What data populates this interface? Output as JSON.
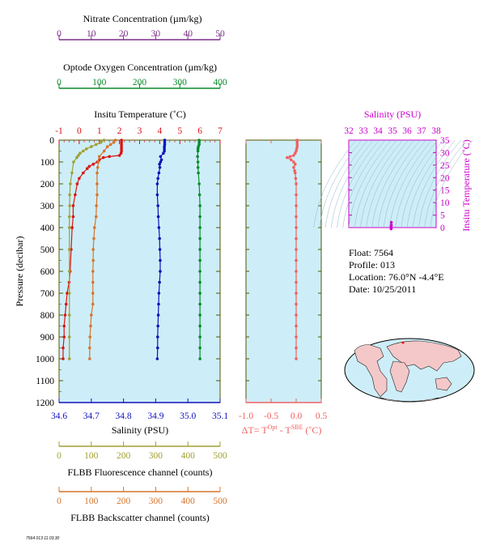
{
  "colors": {
    "nitrate": "#7a2f86",
    "oxygen": "#0a8a2a",
    "temperature": "#dd1111",
    "salinity": "#1111bb",
    "fluorescence": "#a0a030",
    "backscatter": "#d8742a",
    "delta": "#f06060",
    "ts_axis": "#cc00cc",
    "plot_bg": "#cdeef8",
    "frame": "#555500"
  },
  "info": {
    "float": "Float:  7564",
    "profile": "Profile:  013",
    "location": "Location:  76.0°N  -4.4°E",
    "date": "Date:  10/25/2011"
  },
  "footer_tag": "7564 013 11.03.30",
  "chart_data": [
    {
      "type": "scatter",
      "id": "main_profile",
      "ylabel": "Pressure (decibar)",
      "y_ticks": [
        0,
        100,
        200,
        300,
        400,
        500,
        600,
        700,
        800,
        900,
        1000,
        1100,
        1200
      ],
      "ylim": [
        1200,
        0
      ],
      "axes": {
        "nitrate": {
          "title": "Nitrate Concentration (µm/kg)",
          "ticks": [
            0,
            10,
            20,
            30,
            40,
            50
          ],
          "lim": [
            0,
            50
          ]
        },
        "oxygen": {
          "title": "Optode Oxygen Concentration (µm/kg)",
          "ticks": [
            0,
            100,
            200,
            300,
            400
          ],
          "lim": [
            0,
            400
          ]
        },
        "temperature": {
          "title": "Insitu Temperature (˚C)",
          "ticks": [
            -1,
            0,
            1,
            2,
            3,
            4,
            5,
            6,
            7
          ],
          "lim": [
            -1,
            7
          ]
        },
        "salinity": {
          "title": "Salinity (PSU)",
          "ticks": [
            34.6,
            34.7,
            34.8,
            34.9,
            35.0,
            35.1
          ],
          "lim": [
            34.6,
            35.1
          ]
        },
        "fluorescence": {
          "title": "FLBB Fluorescence channel (counts)",
          "ticks": [
            0,
            100,
            200,
            300,
            400,
            500
          ],
          "lim": [
            0,
            500
          ]
        },
        "backscatter": {
          "title": "FLBB Backscatter channel (counts)",
          "ticks": [
            0,
            100,
            200,
            300,
            400,
            500
          ],
          "lim": [
            0,
            500
          ]
        }
      },
      "series": [
        {
          "key": "temperature",
          "axis": "temperature",
          "points": [
            [
              0,
              2.1
            ],
            [
              10,
              2.1
            ],
            [
              20,
              2.1
            ],
            [
              30,
              2.1
            ],
            [
              40,
              2.1
            ],
            [
              50,
              2.1
            ],
            [
              60,
              2.08
            ],
            [
              70,
              2.0
            ],
            [
              75,
              1.5
            ],
            [
              80,
              1.2
            ],
            [
              90,
              1.0
            ],
            [
              100,
              0.9
            ],
            [
              110,
              0.7
            ],
            [
              120,
              0.5
            ],
            [
              130,
              0.4
            ],
            [
              150,
              0.2
            ],
            [
              175,
              0.0
            ],
            [
              200,
              -0.1
            ],
            [
              250,
              -0.2
            ],
            [
              300,
              -0.3
            ],
            [
              350,
              -0.3
            ],
            [
              400,
              -0.35
            ],
            [
              500,
              -0.4
            ],
            [
              600,
              -0.45
            ],
            [
              650,
              -0.5
            ],
            [
              700,
              -0.6
            ],
            [
              750,
              -0.65
            ],
            [
              800,
              -0.7
            ],
            [
              850,
              -0.75
            ],
            [
              900,
              -0.75
            ],
            [
              950,
              -0.8
            ],
            [
              1000,
              -0.8
            ]
          ]
        },
        {
          "key": "salinity",
          "axis": "salinity",
          "points": [
            [
              0,
              34.928
            ],
            [
              10,
              34.928
            ],
            [
              20,
              34.928
            ],
            [
              30,
              34.927
            ],
            [
              40,
              34.927
            ],
            [
              50,
              34.927
            ],
            [
              60,
              34.924
            ],
            [
              75,
              34.915
            ],
            [
              90,
              34.918
            ],
            [
              100,
              34.915
            ],
            [
              110,
              34.912
            ],
            [
              125,
              34.913
            ],
            [
              150,
              34.91
            ],
            [
              175,
              34.907
            ],
            [
              200,
              34.905
            ],
            [
              250,
              34.905
            ],
            [
              300,
              34.907
            ],
            [
              350,
              34.908
            ],
            [
              400,
              34.91
            ],
            [
              450,
              34.912
            ],
            [
              500,
              34.913
            ],
            [
              550,
              34.914
            ],
            [
              600,
              34.914
            ],
            [
              650,
              34.912
            ],
            [
              700,
              34.91
            ],
            [
              750,
              34.909
            ],
            [
              800,
              34.908
            ],
            [
              850,
              34.907
            ],
            [
              900,
              34.906
            ],
            [
              950,
              34.906
            ],
            [
              1000,
              34.905
            ]
          ]
        },
        {
          "key": "oxygen",
          "axis": "oxygen",
          "points": [
            [
              0,
              348
            ],
            [
              10,
              348
            ],
            [
              20,
              348
            ],
            [
              30,
              346
            ],
            [
              40,
              345
            ],
            [
              50,
              345
            ],
            [
              75,
              344
            ],
            [
              100,
              345
            ],
            [
              125,
              345
            ],
            [
              150,
              346
            ],
            [
              200,
              348
            ],
            [
              250,
              349
            ],
            [
              300,
              350
            ],
            [
              350,
              350
            ],
            [
              400,
              350
            ],
            [
              450,
              350
            ],
            [
              500,
              350
            ],
            [
              550,
              350
            ],
            [
              600,
              350
            ],
            [
              650,
              350
            ],
            [
              700,
              350
            ],
            [
              750,
              350
            ],
            [
              800,
              350
            ],
            [
              850,
              350
            ],
            [
              900,
              350
            ],
            [
              950,
              350
            ],
            [
              1000,
              350
            ]
          ]
        },
        {
          "key": "fluorescence",
          "axis": "fluorescence",
          "points": [
            [
              0,
              140
            ],
            [
              10,
              130
            ],
            [
              20,
              115
            ],
            [
              30,
              100
            ],
            [
              40,
              85
            ],
            [
              50,
              75
            ],
            [
              60,
              65
            ],
            [
              70,
              60
            ],
            [
              80,
              55
            ],
            [
              100,
              45
            ],
            [
              150,
              40
            ],
            [
              200,
              35
            ],
            [
              250,
              33
            ],
            [
              300,
              33
            ],
            [
              350,
              32
            ],
            [
              400,
              32
            ],
            [
              500,
              32
            ],
            [
              600,
              32
            ],
            [
              700,
              32
            ],
            [
              800,
              32
            ],
            [
              900,
              32
            ],
            [
              1000,
              32
            ]
          ]
        },
        {
          "key": "backscatter",
          "axis": "backscatter",
          "points": [
            [
              0,
              175
            ],
            [
              10,
              170
            ],
            [
              20,
              160
            ],
            [
              30,
              150
            ],
            [
              50,
              140
            ],
            [
              75,
              125
            ],
            [
              100,
              122
            ],
            [
              125,
              120
            ],
            [
              150,
              118
            ],
            [
              200,
              118
            ],
            [
              250,
              118
            ],
            [
              300,
              116
            ],
            [
              350,
              115
            ],
            [
              400,
              110
            ],
            [
              450,
              108
            ],
            [
              500,
              106
            ],
            [
              550,
              106
            ],
            [
              600,
              105
            ],
            [
              650,
              105
            ],
            [
              700,
              105
            ],
            [
              750,
              105
            ],
            [
              800,
              100
            ],
            [
              850,
              98
            ],
            [
              900,
              96
            ],
            [
              950,
              95
            ],
            [
              1000,
              95
            ]
          ]
        }
      ]
    },
    {
      "type": "scatter",
      "id": "delta_t",
      "xlabel": "ΔT= T^Opt - T^SBE (˚C)",
      "x_ticks": [
        -1.0,
        -0.5,
        0.0,
        0.5
      ],
      "xlim": [
        -1.0,
        0.5
      ],
      "ylim": [
        1200,
        0
      ],
      "points": [
        [
          0,
          0.02
        ],
        [
          10,
          0.02
        ],
        [
          20,
          0.02
        ],
        [
          30,
          0.02
        ],
        [
          40,
          0.01
        ],
        [
          50,
          0.0
        ],
        [
          60,
          -0.02
        ],
        [
          70,
          -0.05
        ],
        [
          75,
          -0.12
        ],
        [
          80,
          -0.18
        ],
        [
          90,
          -0.1
        ],
        [
          100,
          -0.05
        ],
        [
          110,
          -0.02
        ],
        [
          125,
          -0.05
        ],
        [
          140,
          -0.03
        ],
        [
          150,
          -0.02
        ],
        [
          175,
          -0.01
        ],
        [
          200,
          0.0
        ],
        [
          250,
          0.0
        ],
        [
          300,
          0.0
        ],
        [
          350,
          0.0
        ],
        [
          400,
          0.0
        ],
        [
          450,
          0.0
        ],
        [
          500,
          0.0
        ],
        [
          550,
          0.0
        ],
        [
          600,
          0.0
        ],
        [
          650,
          0.0
        ],
        [
          700,
          0.0
        ],
        [
          750,
          0.0
        ],
        [
          800,
          0.0
        ],
        [
          850,
          0.0
        ],
        [
          900,
          0.0
        ],
        [
          950,
          0.0
        ],
        [
          1000,
          0.0
        ]
      ]
    },
    {
      "type": "scatter",
      "id": "ts_diagram",
      "xlabel": "Salinity (PSU)",
      "ylabel": "Insitu Temperature (˚C)",
      "x_ticks": [
        32,
        33,
        34,
        35,
        36,
        37,
        38
      ],
      "xlim": [
        32,
        38
      ],
      "y_ticks": [
        0,
        5,
        10,
        15,
        20,
        25,
        30,
        35
      ],
      "ylim": [
        0,
        35
      ],
      "points": [
        [
          34.92,
          2.1
        ],
        [
          34.92,
          1.0
        ],
        [
          34.91,
          0.5
        ],
        [
          34.91,
          0.0
        ],
        [
          34.91,
          -0.5
        ]
      ]
    }
  ]
}
